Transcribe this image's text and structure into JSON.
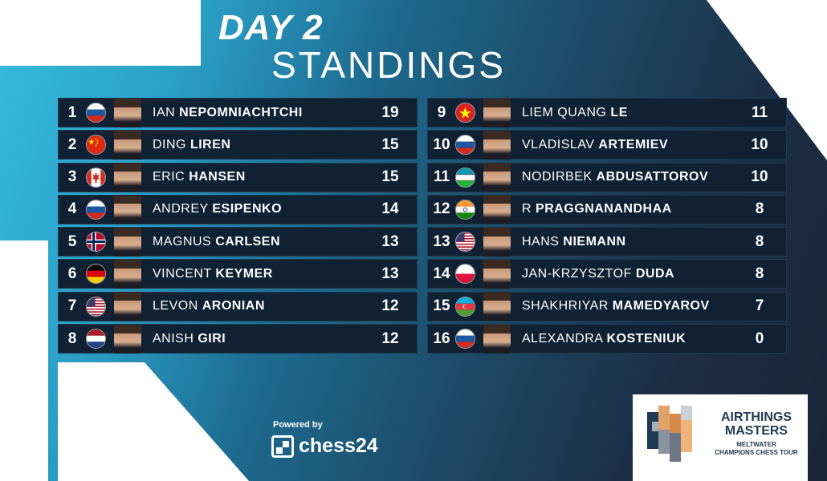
{
  "header": {
    "day": "DAY 2",
    "subtitle": "STANDINGS"
  },
  "left": [
    {
      "rank": "1",
      "first": "IAN",
      "last": "NEPOMNIACHTCHI",
      "score": "19",
      "flag": "russia"
    },
    {
      "rank": "2",
      "first": "DING",
      "last": "LIREN",
      "score": "15",
      "flag": "china"
    },
    {
      "rank": "3",
      "first": "ERIC",
      "last": "HANSEN",
      "score": "15",
      "flag": "canada"
    },
    {
      "rank": "4",
      "first": "ANDREY",
      "last": "ESIPENKO",
      "score": "14",
      "flag": "russia"
    },
    {
      "rank": "5",
      "first": "MAGNUS",
      "last": "CARLSEN",
      "score": "13",
      "flag": "norway"
    },
    {
      "rank": "6",
      "first": "VINCENT",
      "last": "KEYMER",
      "score": "13",
      "flag": "germany"
    },
    {
      "rank": "7",
      "first": "LEVON",
      "last": "ARONIAN",
      "score": "12",
      "flag": "usa"
    },
    {
      "rank": "8",
      "first": "ANISH",
      "last": "GIRI",
      "score": "12",
      "flag": "netherlands"
    }
  ],
  "right": [
    {
      "rank": "9",
      "first": "LIEM QUANG",
      "last": "LE",
      "score": "11",
      "flag": "vietnam"
    },
    {
      "rank": "10",
      "first": "VLADISLAV",
      "last": "ARTEMIEV",
      "score": "10",
      "flag": "russia"
    },
    {
      "rank": "11",
      "first": "NODIRBEK",
      "last": "ABDUSATTOROV",
      "score": "10",
      "flag": "uzbekistan"
    },
    {
      "rank": "12",
      "first": "R",
      "last": "PRAGGNANANDHAA",
      "score": "8",
      "flag": "india"
    },
    {
      "rank": "13",
      "first": "HANS",
      "last": "NIEMANN",
      "score": "8",
      "flag": "usa"
    },
    {
      "rank": "14",
      "first": "JAN-KRZYSZTOF",
      "last": "DUDA",
      "score": "8",
      "flag": "poland"
    },
    {
      "rank": "15",
      "first": "SHAKHRIYAR",
      "last": "MAMEDYAROV",
      "score": "7",
      "flag": "azerbaijan"
    },
    {
      "rank": "16",
      "first": "ALEXANDRA",
      "last": "KOSTENIUK",
      "score": "0",
      "flag": "russia"
    }
  ],
  "footer": {
    "powered_by": "Powered by",
    "brand": "chess24",
    "sponsor_title_1": "AIRTHINGS",
    "sponsor_title_2": "MASTERS",
    "sponsor_sub_1": "MELTWATER",
    "sponsor_sub_2": "CHAMPIONS CHESS TOUR"
  },
  "colors": {
    "row_bg": "#0f2133",
    "text": "#ffffff",
    "sponsor_text": "#1f3a52"
  }
}
